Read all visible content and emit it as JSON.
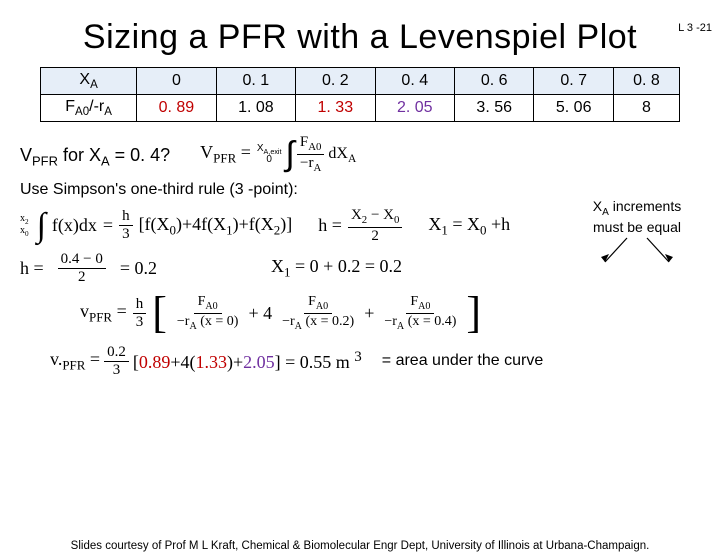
{
  "page_label": "L 3 -21",
  "title": "Sizing a PFR with a Levenspiel Plot",
  "table": {
    "row1_label": "X<sub>A</sub>",
    "row2_label": "F<sub>A0</sub>/-r<sub>A</sub>",
    "xa": [
      "0",
      "0. 1",
      "0. 2",
      "0. 4",
      "0. 6",
      "0. 7",
      "0. 8"
    ],
    "vals": [
      "0. 89",
      "1. 08",
      "1. 33",
      "2. 05",
      "3. 56",
      "5. 06",
      "8"
    ],
    "highlight_indices": [
      0,
      2,
      3
    ],
    "highlight_colors": [
      "#c00000",
      "#c00000",
      "#7030a0"
    ],
    "header_bg": "#e6eef8"
  },
  "question_html": "V<sub>PFR</sub> for X<sub>A</sub> = 0. 4?",
  "integral": {
    "lhs": "V<sub>PFR</sub> =",
    "upper": "X<sub>A,exit</sub>",
    "lower": "0",
    "num": "F<sub>A0</sub>",
    "den": "−r<sub>A</sub>",
    "dx": "dX<sub>A</sub>"
  },
  "note_html": "X<sub>A</sub> increments<br>must be equal",
  "simpson": "Use Simpson's one-third rule (3 -point):",
  "simpson_eq": {
    "lhs_upper": "x<sub>2</sub>",
    "lhs_lower": "x<sub>0</sub>",
    "fx": "f(x)dx",
    "eq": "=",
    "h_over_3_num": "h",
    "h_over_3_den": "3",
    "bracket": "[f(X<sub>0</sub>)+4f(X<sub>1</sub>)+f(X<sub>2</sub>)]",
    "h_def": "h =",
    "h_num": "X<sub>2</sub> − X<sub>0</sub>",
    "h_den": "2",
    "x1_def": "X<sub>1</sub> = X<sub>0</sub> +h"
  },
  "h_calc": {
    "lhs": "h =",
    "num": "0.4 − 0",
    "den": "2",
    "result": "= 0.2",
    "x1": "X<sub>1</sub> = 0 + 0.2 = 0.2"
  },
  "vpfr_eq": {
    "lhs": "v<sub>PFR</sub> =",
    "h3_num": "h",
    "h3_den": "3",
    "t1_num": "F<sub>A0</sub>",
    "t1_den": "−r<sub>A</sub> (x = 0)",
    "plus4": "+ 4",
    "t2_num": "F<sub>A0</sub>",
    "t2_den": "−r<sub>A</sub> (x = 0.2)",
    "plus": "+",
    "t3_num": "F<sub>A0</sub>",
    "t3_den": "−r<sub>A</sub> (x = 0.4)"
  },
  "final": {
    "lhs": "v.<sub>PFR</sub> =",
    "h3_num": "0.2",
    "h3_den": "3",
    "inner": "[<span style='color:#c00000'>0.89</span>+4(<span style='color:#c00000'>1.33</span>)+<span style='color:#7030a0'>2.05</span>] = 0.55 m <sup>3</sup>",
    "area": "= area under the curve"
  },
  "footer": "Slides courtesy of Prof M L Kraft, Chemical & Biomolecular Engr Dept, University of Illinois at Urbana-Champaign."
}
